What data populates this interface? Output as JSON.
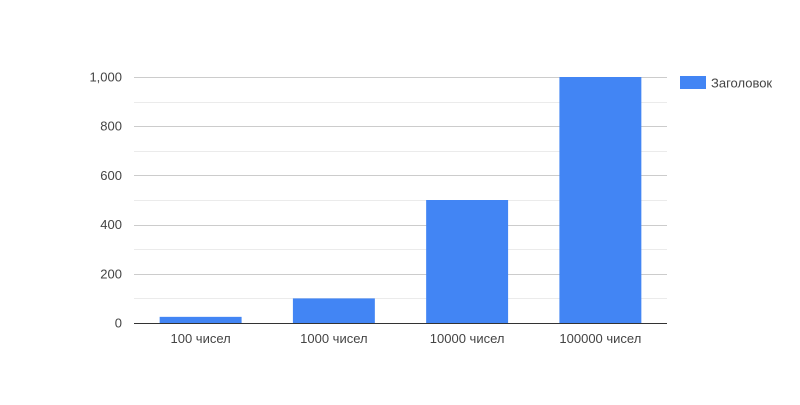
{
  "chart_data": {
    "type": "bar",
    "title": "",
    "xlabel": "",
    "ylabel": "",
    "categories": [
      "100 чисел",
      "1000 чисел",
      "10000 чисел",
      "100000 чисел"
    ],
    "series": [
      {
        "name": "Заголовок",
        "color": "#4285f4",
        "values": [
          25,
          100,
          500,
          1000
        ]
      }
    ],
    "ylim": [
      0,
      1000
    ],
    "yticks": [
      0,
      200,
      400,
      600,
      800,
      1000
    ],
    "ytick_labels": [
      "0",
      "200",
      "400",
      "600",
      "800",
      "1,000"
    ],
    "grid": true,
    "legend_position": "right"
  }
}
